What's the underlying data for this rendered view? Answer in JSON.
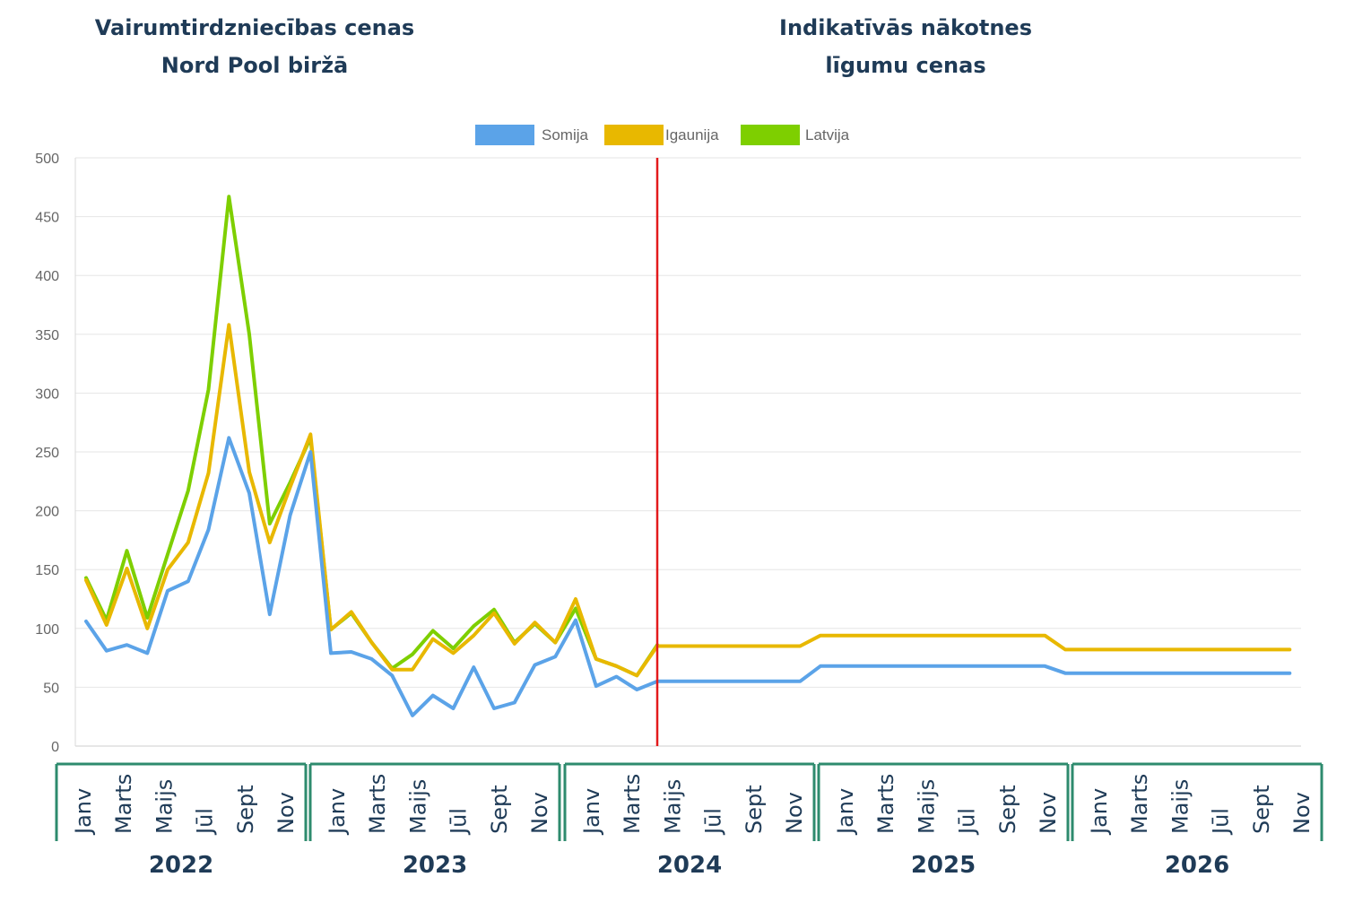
{
  "headings": {
    "historical": [
      "Vairumtirdzniecības cenas",
      "Nord Pool biržā"
    ],
    "futures": [
      "Indikatīvās nākotnes",
      "līgumu cenas"
    ]
  },
  "colors": {
    "somija": "#5ba3e8",
    "igaunija": "#e8b800",
    "latvija": "#7ecf00",
    "divider": "#e31a1c",
    "year_box": "#2e8b6e",
    "text": "#1f3b57"
  },
  "chart_data": {
    "type": "line",
    "title": "",
    "xlabel": "",
    "ylabel": "",
    "ylim": [
      0,
      500
    ],
    "yticks": [
      0,
      50,
      100,
      150,
      200,
      250,
      300,
      350,
      400,
      450,
      500
    ],
    "grid": true,
    "legend_position": "top",
    "years": [
      "2022",
      "2023",
      "2024",
      "2025",
      "2026"
    ],
    "month_labels": [
      "Janv",
      "Marts",
      "Maijs",
      "Jūl",
      "Sept",
      "Nov"
    ],
    "divider_after": "2024-04",
    "series": [
      {
        "name": "Somija",
        "color": "#5ba3e8",
        "values": [
          106,
          81,
          86,
          79,
          132,
          140,
          184,
          262,
          215,
          112,
          196,
          250,
          79,
          80,
          74,
          60,
          26,
          43,
          32,
          67,
          32,
          37,
          69,
          76,
          107,
          51,
          59,
          48,
          55,
          55,
          55,
          55,
          55,
          55,
          55,
          55,
          68,
          68,
          68,
          68,
          68,
          68,
          68,
          68,
          68,
          68,
          68,
          68,
          62,
          62,
          62,
          62,
          62,
          62,
          62,
          62,
          62,
          62,
          62,
          62
        ]
      },
      {
        "name": "Igaunija",
        "color": "#e8b800",
        "values": [
          141,
          103,
          151,
          100,
          150,
          173,
          232,
          358,
          233,
          173,
          220,
          265,
          99,
          114,
          88,
          65,
          65,
          91,
          79,
          94,
          113,
          87,
          105,
          88,
          125,
          74,
          68,
          60,
          85,
          85,
          85,
          85,
          85,
          85,
          85,
          85,
          94,
          94,
          94,
          94,
          94,
          94,
          94,
          94,
          94,
          94,
          94,
          94,
          82,
          82,
          82,
          82,
          82,
          82,
          82,
          82,
          82,
          82,
          82,
          82
        ]
      },
      {
        "name": "Latvija",
        "color": "#7ecf00",
        "values": [
          143,
          107,
          166,
          109,
          163,
          217,
          303,
          467,
          350,
          189,
          224,
          262,
          99,
          113,
          88,
          66,
          78,
          98,
          83,
          102,
          116,
          88,
          104,
          88,
          117,
          74,
          68,
          60,
          86
        ]
      }
    ]
  }
}
